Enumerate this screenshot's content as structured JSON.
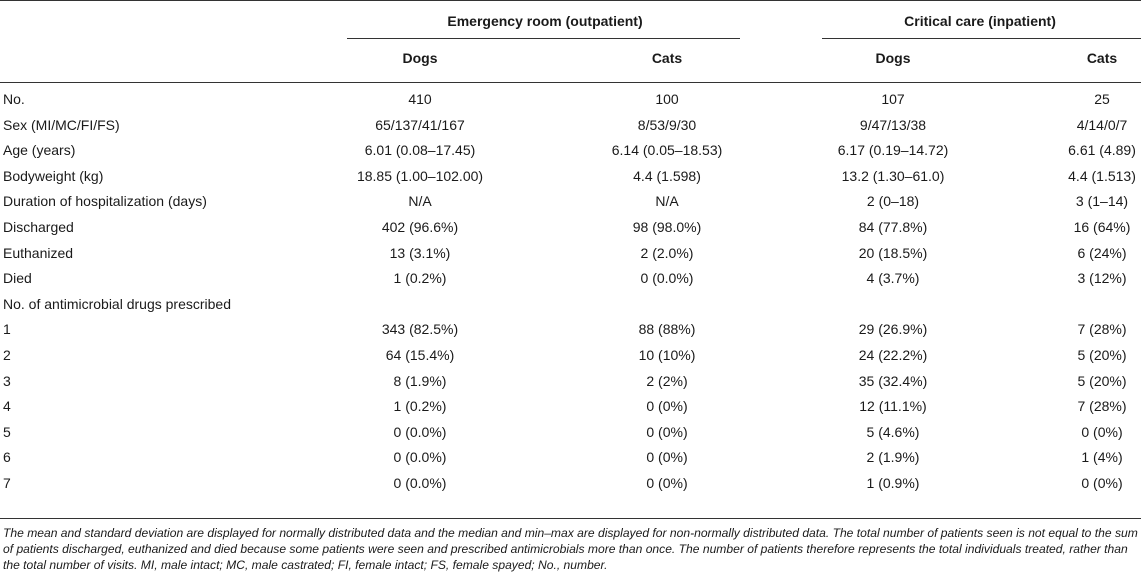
{
  "header": {
    "group_er": "Emergency room (outpatient)",
    "group_cc": "Critical care (inpatient)",
    "dogs": "Dogs",
    "cats": "Cats"
  },
  "rows": [
    {
      "label": "No.",
      "er_dogs": "410",
      "er_cats": "100",
      "cc_dogs": "107",
      "cc_cats": "25"
    },
    {
      "label": "Sex (MI/MC/FI/FS)",
      "er_dogs": "65/137/41/167",
      "er_cats": "8/53/9/30",
      "cc_dogs": "9/47/13/38",
      "cc_cats": "4/14/0/7"
    },
    {
      "label": "Age (years)",
      "er_dogs": "6.01 (0.08–17.45)",
      "er_cats": "6.14 (0.05–18.53)",
      "cc_dogs": "6.17 (0.19–14.72)",
      "cc_cats": "6.61 (4.89)"
    },
    {
      "label": "Bodyweight (kg)",
      "er_dogs": "18.85 (1.00–102.00)",
      "er_cats": "4.4 (1.598)",
      "cc_dogs": "13.2 (1.30–61.0)",
      "cc_cats": "4.4 (1.513)"
    },
    {
      "label": "Duration of hospitalization (days)",
      "er_dogs": "N/A",
      "er_cats": "N/A",
      "cc_dogs": "2 (0–18)",
      "cc_cats": "3 (1–14)"
    },
    {
      "label": "Discharged",
      "er_dogs": "402 (96.6%)",
      "er_cats": "98 (98.0%)",
      "cc_dogs": "84 (77.8%)",
      "cc_cats": "16 (64%)"
    },
    {
      "label": "Euthanized",
      "er_dogs": "13 (3.1%)",
      "er_cats": "2 (2.0%)",
      "cc_dogs": "20 (18.5%)",
      "cc_cats": "6 (24%)"
    },
    {
      "label": "Died",
      "er_dogs": "1 (0.2%)",
      "er_cats": "0 (0.0%)",
      "cc_dogs": "4 (3.7%)",
      "cc_cats": "3 (12%)"
    },
    {
      "label": "No. of antimicrobial drugs prescribed",
      "er_dogs": "",
      "er_cats": "",
      "cc_dogs": "",
      "cc_cats": ""
    },
    {
      "label": "1",
      "er_dogs": "343 (82.5%)",
      "er_cats": "88 (88%)",
      "cc_dogs": "29 (26.9%)",
      "cc_cats": "7 (28%)"
    },
    {
      "label": "2",
      "er_dogs": "64 (15.4%)",
      "er_cats": "10 (10%)",
      "cc_dogs": "24 (22.2%)",
      "cc_cats": "5 (20%)"
    },
    {
      "label": "3",
      "er_dogs": "8 (1.9%)",
      "er_cats": "2 (2%)",
      "cc_dogs": "35 (32.4%)",
      "cc_cats": "5 (20%)"
    },
    {
      "label": "4",
      "er_dogs": "1 (0.2%)",
      "er_cats": "0 (0%)",
      "cc_dogs": "12 (11.1%)",
      "cc_cats": "7 (28%)"
    },
    {
      "label": "5",
      "er_dogs": "0 (0.0%)",
      "er_cats": "0 (0%)",
      "cc_dogs": "5 (4.6%)",
      "cc_cats": "0 (0%)"
    },
    {
      "label": "6",
      "er_dogs": "0 (0.0%)",
      "er_cats": "0 (0%)",
      "cc_dogs": "2 (1.9%)",
      "cc_cats": "1 (4%)"
    },
    {
      "label": "7",
      "er_dogs": "0 (0.0%)",
      "er_cats": "0 (0%)",
      "cc_dogs": "1 (0.9%)",
      "cc_cats": "0 (0%)"
    }
  ],
  "footnote": "The mean and standard deviation are displayed for normally distributed data and the median and min–max are displayed for non-normally distributed data. The total number of patients seen is not equal to the sum of patients discharged, euthanized and died because some patients were seen and prescribed antimicrobials more than once. The number of patients therefore represents the total individuals treated, rather than the total number of visits. MI, male intact; MC, male castrated; FI, female intact; FS, female spayed; No., number."
}
